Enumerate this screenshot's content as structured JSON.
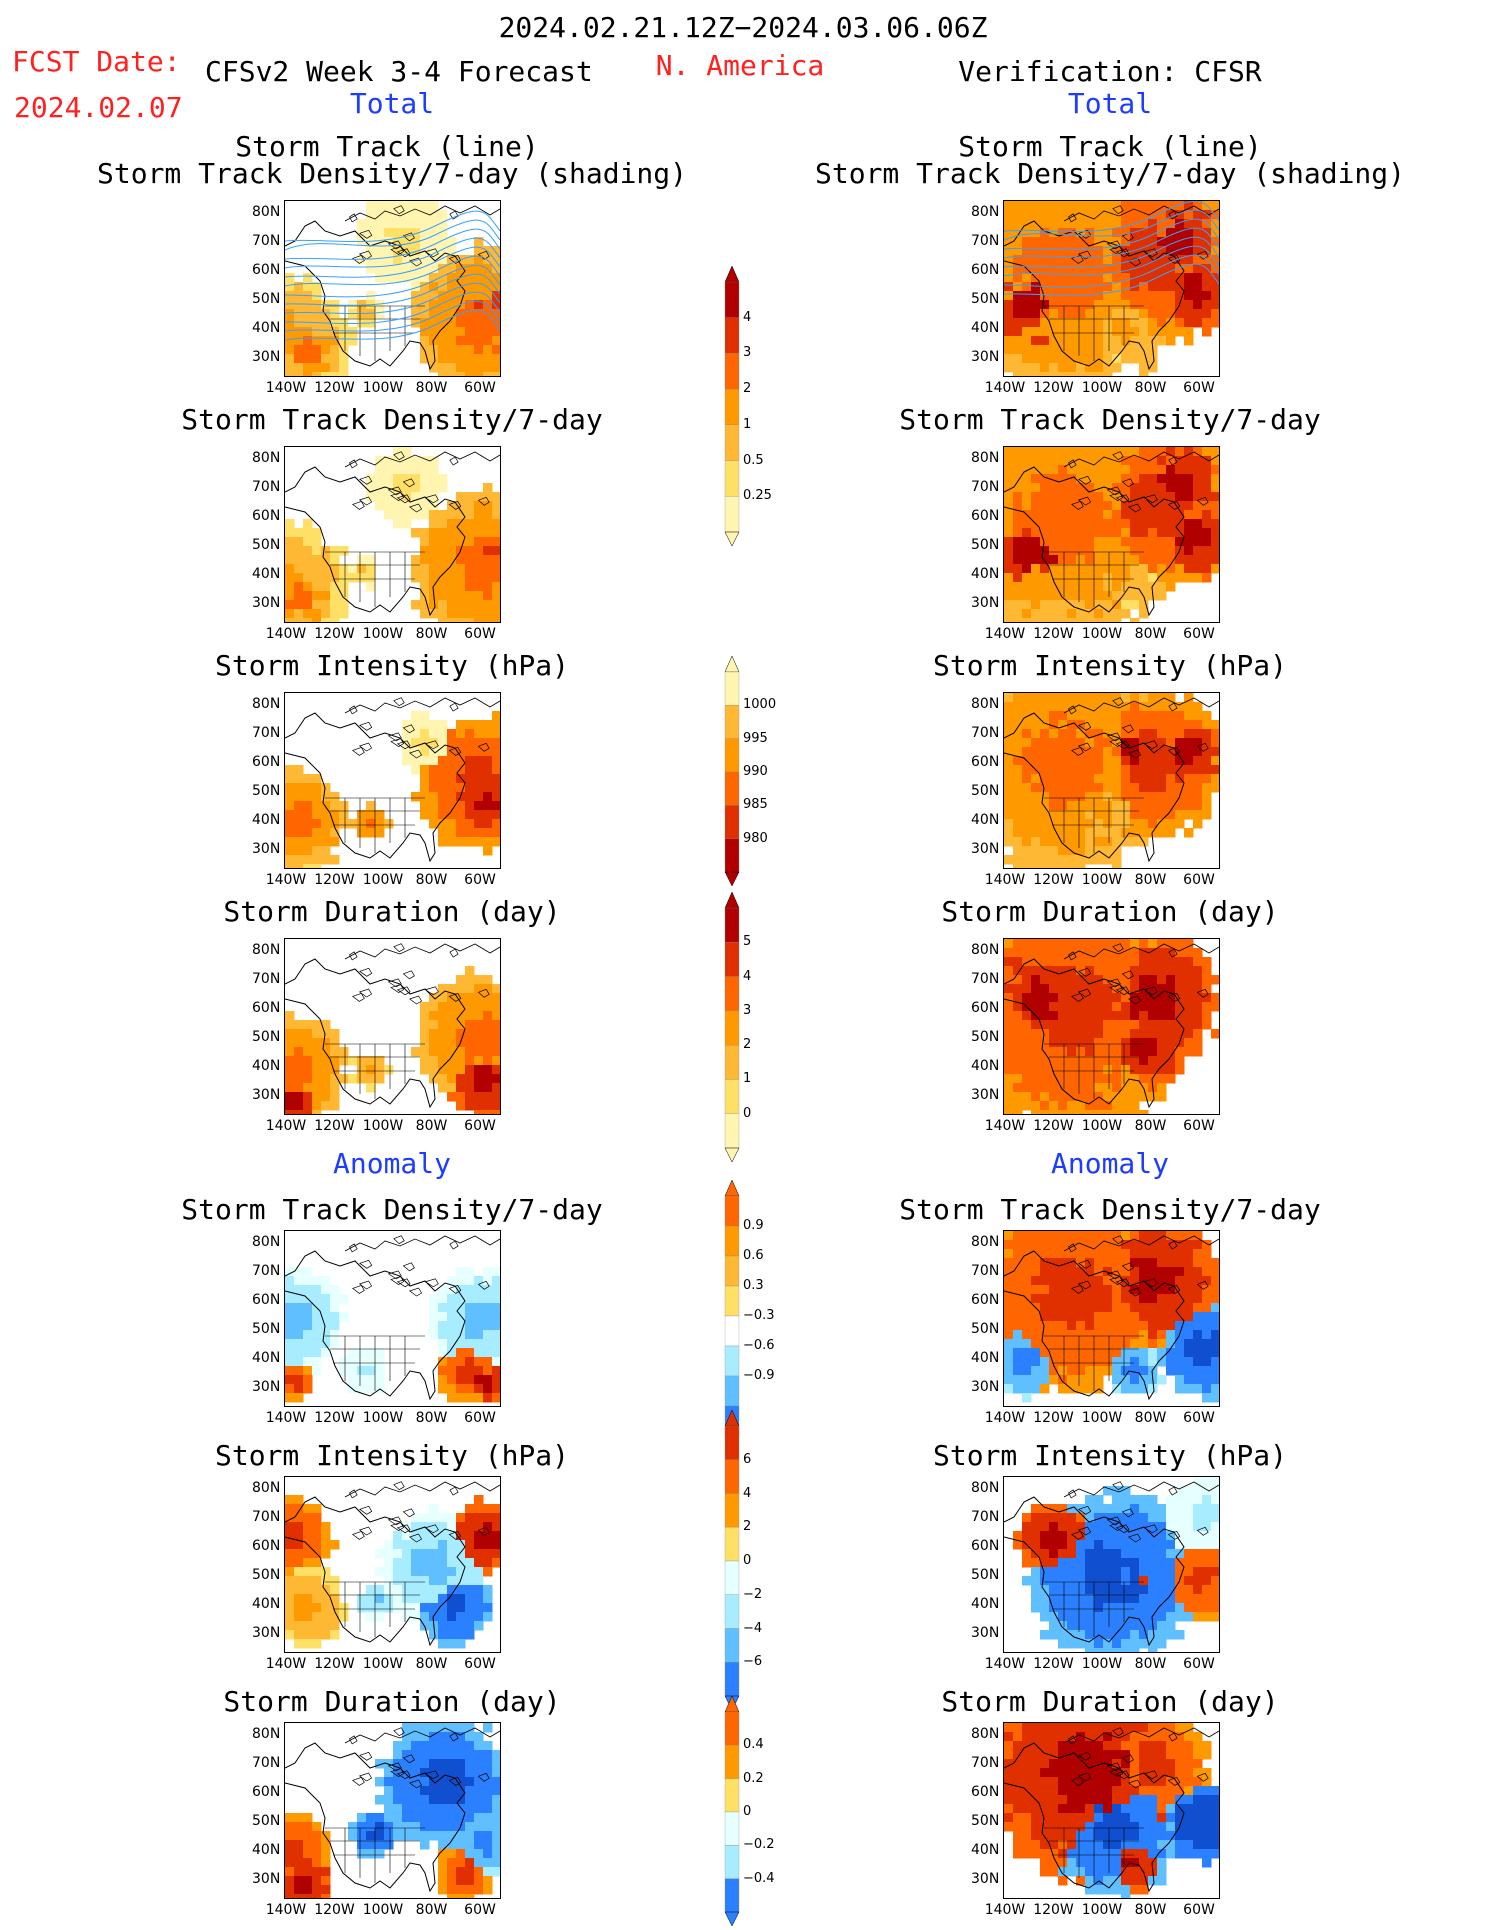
{
  "header": {
    "date_range": "2024.02.21.12Z−2024.03.06.06Z",
    "fcst_date_label": "FCST Date:",
    "fcst_date_value": "2024.02.07",
    "model_title": "CFSv2 Week 3-4 Forecast",
    "region": "N. America",
    "verification": "Verification: CFSR",
    "total_left": "Total",
    "total_right": "Total",
    "anomaly_left": "Anomaly",
    "anomaly_right": "Anomaly"
  },
  "panel_titles": {
    "track_line": "Storm Track (line)",
    "track_shading": "Storm Track Density/7-day (shading)",
    "density": "Storm Track Density/7-day",
    "intensity": "Storm Intensity (hPa)",
    "duration": "Storm Duration (day)"
  },
  "axes": {
    "lat_labels": [
      "80N",
      "70N",
      "60N",
      "50N",
      "40N",
      "30N"
    ],
    "lon_labels": [
      "140W",
      "120W",
      "100W",
      "80W",
      "60W"
    ]
  },
  "colorbars": {
    "density_total": [
      "4",
      "3",
      "2",
      "1",
      "0.5",
      "0.25"
    ],
    "intensity_total": [
      "1000",
      "995",
      "990",
      "985",
      "980"
    ],
    "duration_total": [
      "5",
      "4",
      "3",
      "2",
      "1",
      "0"
    ],
    "density_anom": [
      "0.9",
      "0.6",
      "0.3",
      "−0.3",
      "−0.6",
      "−0.9"
    ],
    "intensity_anom": [
      "6",
      "4",
      "2",
      "0",
      "−2",
      "−4",
      "−6"
    ],
    "duration_anom": [
      "0.4",
      "0.2",
      "0",
      "−0.2",
      "−0.4"
    ]
  },
  "colors": {
    "warm": [
      "#fff5b0",
      "#ffe066",
      "#ffb833",
      "#ff9900",
      "#ff6600",
      "#e03000",
      "#b00000"
    ],
    "cool": [
      "#e6ffff",
      "#a8ecff",
      "#60c0ff",
      "#2a80ff",
      "#1050d0"
    ],
    "track_line": "#3aa0ff"
  }
}
